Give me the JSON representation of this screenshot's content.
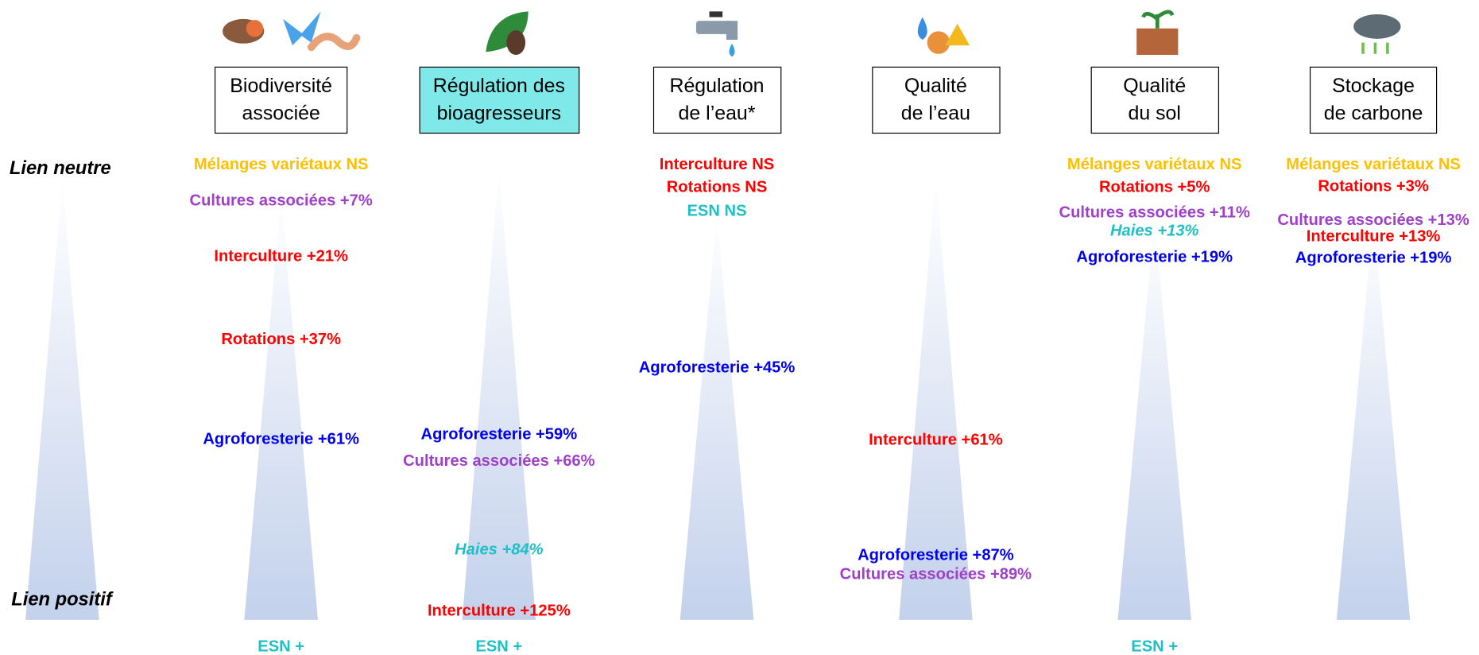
{
  "side_labels": {
    "top": "Lien neutre",
    "bottom": "Lien positif"
  },
  "columns": [
    {
      "title": [
        "Biodiversité",
        "associée"
      ],
      "highlight": false,
      "items": [
        {
          "text": "Mélanges variétaux NS",
          "color": "#ffc000"
        },
        {
          "text": "Cultures associées +7%",
          "color": "#a040c8"
        },
        {
          "text": "Interculture +21%",
          "color": "#ff0000"
        },
        {
          "text": "Rotations +37%",
          "color": "#ff0000"
        },
        {
          "text": "Agroforesterie +61%",
          "color": "#0000ee"
        }
      ],
      "footer": {
        "text": "ESN +",
        "color": "#1fbfc6"
      }
    },
    {
      "title": [
        "Régulation des",
        "bioagresseurs"
      ],
      "highlight": true,
      "items": [
        {
          "text": "Agroforesterie +59%",
          "color": "#0000ee"
        },
        {
          "text": "Cultures associées +66%",
          "color": "#a040c8"
        },
        {
          "text": "Haies +84%",
          "color": "#1fbfc6",
          "italic": true
        },
        {
          "text": "Interculture +125%",
          "color": "#ff0000"
        }
      ],
      "footer": {
        "text": "ESN +",
        "color": "#1fbfc6"
      }
    },
    {
      "title": [
        "Régulation",
        "de l’eau*"
      ],
      "highlight": false,
      "items": [
        {
          "text": "Interculture NS",
          "color": "#ff0000"
        },
        {
          "text": "Rotations NS",
          "color": "#ff0000"
        },
        {
          "text": "ESN NS",
          "color": "#1fbfc6"
        },
        {
          "text": "Agroforesterie +45%",
          "color": "#0000ee"
        }
      ]
    },
    {
      "title": [
        "Qualité",
        "de l’eau"
      ],
      "highlight": false,
      "items": [
        {
          "text": "Interculture +61%",
          "color": "#ff0000"
        },
        {
          "text": "Agroforesterie +87%",
          "color": "#0000ee"
        },
        {
          "text": "Cultures associées +89%",
          "color": "#a040c8"
        }
      ]
    },
    {
      "title": [
        "Qualité",
        "du sol"
      ],
      "highlight": false,
      "items": [
        {
          "text": "Mélanges variétaux NS",
          "color": "#ffc000"
        },
        {
          "text": "Rotations +5%",
          "color": "#ff0000"
        },
        {
          "text": "Cultures associées +11%",
          "color": "#a040c8"
        },
        {
          "text": "Haies +13%",
          "color": "#1fbfc6",
          "italic": true
        },
        {
          "text": "Agroforesterie +19%",
          "color": "#0000ee"
        }
      ],
      "footer": {
        "text": "ESN +",
        "color": "#1fbfc6"
      }
    },
    {
      "title": [
        "Stockage",
        "de carbone"
      ],
      "highlight": false,
      "items": [
        {
          "text": "Mélanges variétaux NS",
          "color": "#ffc000"
        },
        {
          "text": "Rotations +3%",
          "color": "#ff0000"
        },
        {
          "text": "Cultures associées +13%",
          "color": "#a040c8"
        },
        {
          "text": "Interculture +13%",
          "color": "#ff0000"
        },
        {
          "text": "Agroforesterie +19%",
          "color": "#0000ee"
        }
      ]
    }
  ]
}
